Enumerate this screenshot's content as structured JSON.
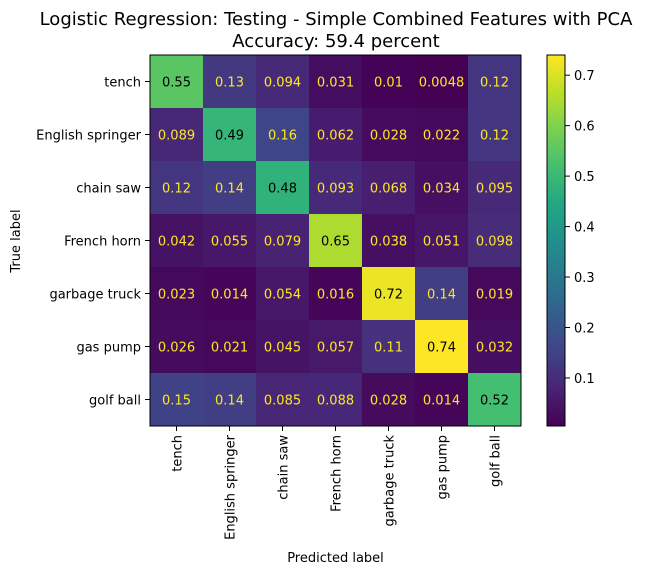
{
  "chart_data": {
    "type": "heatmap",
    "title_lines": [
      "Logistic Regression: Testing - Simple Combined Features with PCA",
      "Accuracy: 59.4 percent"
    ],
    "xlabel": "Predicted label",
    "ylabel": "True label",
    "row_labels": [
      "tench",
      "English springer",
      "chain saw",
      "French horn",
      "garbage truck",
      "gas pump",
      "golf ball"
    ],
    "col_labels": [
      "tench",
      "English springer",
      "chain saw",
      "French horn",
      "garbage truck",
      "gas pump",
      "golf ball"
    ],
    "values": [
      [
        0.55,
        0.13,
        0.094,
        0.031,
        0.01,
        0.0048,
        0.12
      ],
      [
        0.089,
        0.49,
        0.16,
        0.062,
        0.028,
        0.022,
        0.12
      ],
      [
        0.12,
        0.14,
        0.48,
        0.093,
        0.068,
        0.034,
        0.095
      ],
      [
        0.042,
        0.055,
        0.079,
        0.65,
        0.038,
        0.051,
        0.098
      ],
      [
        0.023,
        0.014,
        0.054,
        0.016,
        0.72,
        0.14,
        0.019
      ],
      [
        0.026,
        0.021,
        0.045,
        0.057,
        0.11,
        0.74,
        0.032
      ],
      [
        0.15,
        0.14,
        0.085,
        0.088,
        0.028,
        0.014,
        0.52
      ]
    ],
    "value_labels": [
      [
        "0.55",
        "0.13",
        "0.094",
        "0.031",
        "0.01",
        "0.0048",
        "0.12"
      ],
      [
        "0.089",
        "0.49",
        "0.16",
        "0.062",
        "0.028",
        "0.022",
        "0.12"
      ],
      [
        "0.12",
        "0.14",
        "0.48",
        "0.093",
        "0.068",
        "0.034",
        "0.095"
      ],
      [
        "0.042",
        "0.055",
        "0.079",
        "0.65",
        "0.038",
        "0.051",
        "0.098"
      ],
      [
        "0.023",
        "0.014",
        "0.054",
        "0.016",
        "0.72",
        "0.14",
        "0.019"
      ],
      [
        "0.026",
        "0.021",
        "0.045",
        "0.057",
        "0.11",
        "0.74",
        "0.032"
      ],
      [
        "0.15",
        "0.14",
        "0.085",
        "0.088",
        "0.028",
        "0.014",
        "0.52"
      ]
    ],
    "colormap": "viridis",
    "colorbar": {
      "range": [
        0.0048,
        0.74
      ],
      "ticks": [
        0.1,
        0.2,
        0.3,
        0.4,
        0.5,
        0.6,
        0.7
      ],
      "tick_labels": [
        "0.1",
        "0.2",
        "0.3",
        "0.4",
        "0.5",
        "0.6",
        "0.7"
      ]
    },
    "text_colors": {
      "on_dark": "#fde725",
      "on_light": "#000000"
    },
    "grid": false
  }
}
